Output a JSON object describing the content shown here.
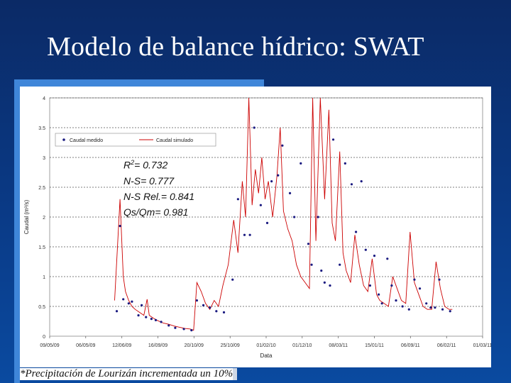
{
  "slide": {
    "title": "Modelo de balance hídrico: SWAT",
    "footnote": "*Precipitación de Lourizán incrementada un 10%"
  },
  "stats": {
    "r2_prefix": "R",
    "r2_sup": "2",
    "r2_value": "= 0.732",
    "ns": "N-S= 0.777",
    "ns_rel": "N-S Rel.= 0.841",
    "qs_qm": "Qs/Qm= 0.981"
  },
  "colors": {
    "background": "#0a3a86",
    "accent": "#3f86d9",
    "measured": "#1a1a80",
    "simulated": "#cc0000"
  },
  "chart_data": {
    "type": "line",
    "xlabel": "Data",
    "ylabel": "Caudal (m³/s)",
    "ylim": [
      0,
      4
    ],
    "yticks": [
      0,
      0.5,
      1,
      1.5,
      2,
      2.5,
      3,
      3.5,
      4
    ],
    "ytick_labels": [
      "0",
      "0.5",
      "1",
      "1.5",
      "2",
      "2.5",
      "3",
      "3.5",
      "4"
    ],
    "xlim": [
      0,
      40
    ],
    "xticks": [
      0,
      3.33,
      6.67,
      10,
      13.33,
      16.67,
      20,
      23.33,
      26.67,
      30,
      33.33,
      36.67,
      40
    ],
    "xtick_labels": [
      "09/05/09",
      "06/05/09",
      "12/06/09",
      "16/09/09",
      "20/10/09",
      "25/10/09",
      "01/02/10",
      "01/12/10",
      "08/03/11",
      "15/01/11",
      "06/09/11",
      "06/02/11",
      "01/03/11"
    ],
    "grid": true,
    "legend": "top-left",
    "series": [
      {
        "name": "Caudal medido",
        "style": "points",
        "x": [
          6.2,
          6.5,
          6.8,
          7.3,
          7.6,
          8.2,
          8.5,
          8.9,
          9.4,
          9.8,
          10.3,
          11.0,
          11.6,
          12.4,
          13.1,
          13.6,
          14.2,
          14.8,
          15.4,
          16.1,
          16.9,
          17.4,
          18.0,
          18.5,
          18.9,
          19.5,
          20.1,
          20.5,
          21.1,
          21.5,
          22.2,
          22.6,
          23.2,
          23.9,
          24.2,
          24.8,
          25.1,
          25.4,
          25.9,
          26.2,
          26.8,
          27.3,
          27.9,
          28.3,
          28.8,
          29.2,
          29.6,
          30.0,
          30.4,
          30.7,
          31.2,
          31.6,
          32.0,
          32.6,
          33.2,
          33.7,
          34.2,
          34.8,
          35.2,
          35.6,
          36.0,
          36.3,
          37.0
        ],
        "y": [
          0.42,
          1.85,
          0.62,
          0.55,
          0.58,
          0.35,
          0.52,
          0.32,
          0.29,
          0.27,
          0.24,
          0.18,
          0.14,
          0.12,
          0.1,
          0.6,
          0.52,
          0.48,
          0.42,
          0.4,
          0.95,
          2.3,
          1.7,
          1.7,
          3.5,
          2.2,
          1.9,
          2.6,
          2.7,
          3.2,
          2.4,
          2.0,
          2.9,
          1.55,
          1.2,
          2.0,
          1.1,
          0.9,
          0.85,
          3.3,
          1.2,
          2.9,
          2.55,
          1.75,
          2.6,
          1.45,
          0.85,
          1.35,
          0.7,
          0.55,
          1.3,
          0.85,
          0.6,
          0.5,
          0.45,
          0.95,
          0.8,
          0.55,
          0.48,
          0.48,
          0.95,
          0.45,
          0.42
        ]
      },
      {
        "name": "Caudal simulado",
        "style": "line",
        "x": [
          6.0,
          6.5,
          6.8,
          7.0,
          7.3,
          7.6,
          7.9,
          8.3,
          8.7,
          9.0,
          9.2,
          9.6,
          10.0,
          10.5,
          11.0,
          11.5,
          12.0,
          12.5,
          13.0,
          13.3,
          13.6,
          14.0,
          14.4,
          14.8,
          15.2,
          15.6,
          16.0,
          16.5,
          17.0,
          17.4,
          17.8,
          18.1,
          18.4,
          18.7,
          19.0,
          19.3,
          19.6,
          19.9,
          20.2,
          20.6,
          21.0,
          21.3,
          21.6,
          22.0,
          22.4,
          22.8,
          23.2,
          23.6,
          24.0,
          24.3,
          24.6,
          25.0,
          25.4,
          25.8,
          26.1,
          26.4,
          26.8,
          27.1,
          27.4,
          27.8,
          28.2,
          28.6,
          29.0,
          29.4,
          29.8,
          30.2,
          30.5,
          30.9,
          31.3,
          31.7,
          32.1,
          32.5,
          32.9,
          33.3,
          33.7,
          34.1,
          34.5,
          34.9,
          35.3,
          35.7,
          36.1,
          36.5,
          36.9,
          37.2
        ],
        "y": [
          0.6,
          2.3,
          1.0,
          0.75,
          0.6,
          0.5,
          0.45,
          0.4,
          0.35,
          0.62,
          0.35,
          0.3,
          0.26,
          0.22,
          0.2,
          0.17,
          0.15,
          0.13,
          0.12,
          0.1,
          0.9,
          0.75,
          0.55,
          0.45,
          0.6,
          0.5,
          0.85,
          1.2,
          1.95,
          1.4,
          2.6,
          2.0,
          4.0,
          2.2,
          2.8,
          2.4,
          3.0,
          2.3,
          2.6,
          2.0,
          2.7,
          3.5,
          2.1,
          1.8,
          1.6,
          1.2,
          1.0,
          0.9,
          0.8,
          4.0,
          1.6,
          4.0,
          2.3,
          3.8,
          1.9,
          1.6,
          3.1,
          1.4,
          1.1,
          0.9,
          1.7,
          1.2,
          0.85,
          0.75,
          1.3,
          0.7,
          0.6,
          0.55,
          0.5,
          1.0,
          0.8,
          0.6,
          0.55,
          1.75,
          0.9,
          0.7,
          0.5,
          0.45,
          0.45,
          1.25,
          0.8,
          0.5,
          0.45,
          0.45
        ]
      }
    ]
  }
}
